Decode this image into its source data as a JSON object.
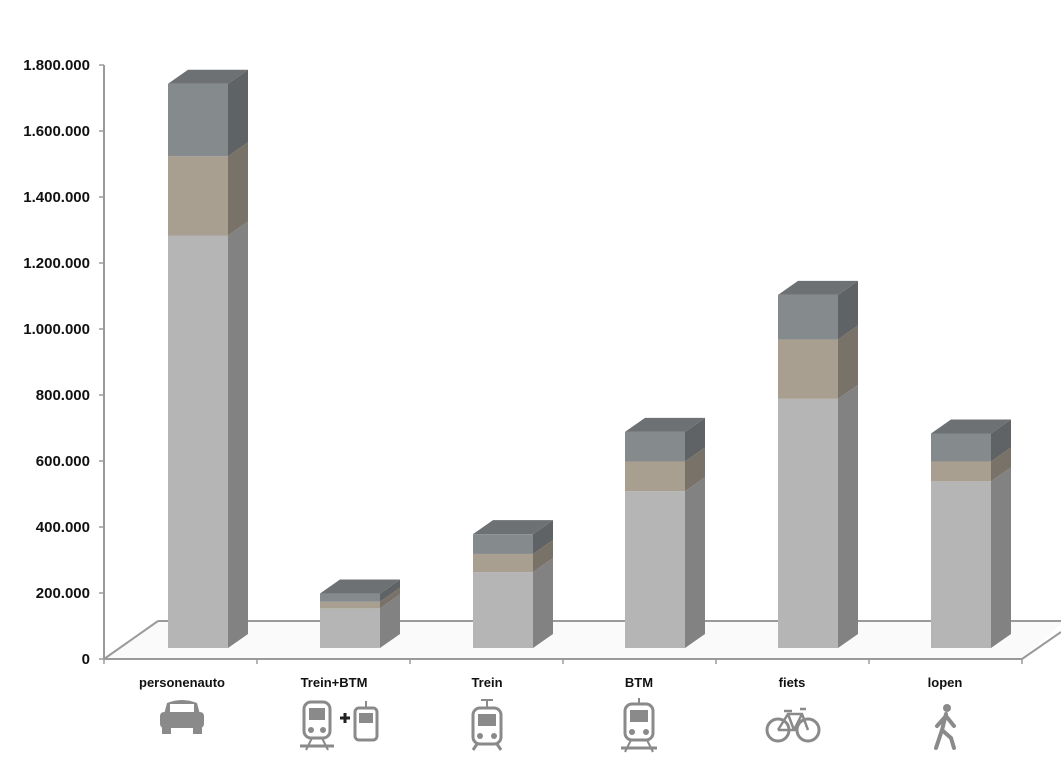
{
  "colors": {
    "background": "#ffffff",
    "segment_bottom": "#b5b5b5",
    "segment_middle": "#a89f91",
    "segment_top": "#858a8c",
    "axis": "#9a9a9a",
    "icon": "#8a8a8a"
  },
  "chart_data": {
    "type": "bar",
    "stacked": true,
    "three_d": true,
    "title": "",
    "xlabel": "",
    "ylabel": "",
    "ylim": [
      0,
      1800000
    ],
    "yticks": [
      "0",
      "200.000",
      "400.000",
      "600.000",
      "800.000",
      "1.000.000",
      "1.200.000",
      "1.400.000",
      "1.600.000",
      "1.800.000"
    ],
    "categories": [
      "personenauto",
      "Trein+BTM",
      "Trein",
      "BTM",
      "fiets",
      "lopen"
    ],
    "category_icons": [
      "car-icon",
      "train-plus-bus-icon",
      "train-icon",
      "tram-icon",
      "bicycle-icon",
      "pedestrian-icon"
    ],
    "series": [
      {
        "values": [
          1250000,
          120000,
          230000,
          475000,
          755000,
          505000
        ]
      },
      {
        "values": [
          240000,
          20000,
          55000,
          90000,
          180000,
          60000
        ]
      },
      {
        "values": [
          220000,
          25000,
          60000,
          90000,
          135000,
          85000
        ]
      }
    ],
    "legend": "none",
    "grid": false
  }
}
